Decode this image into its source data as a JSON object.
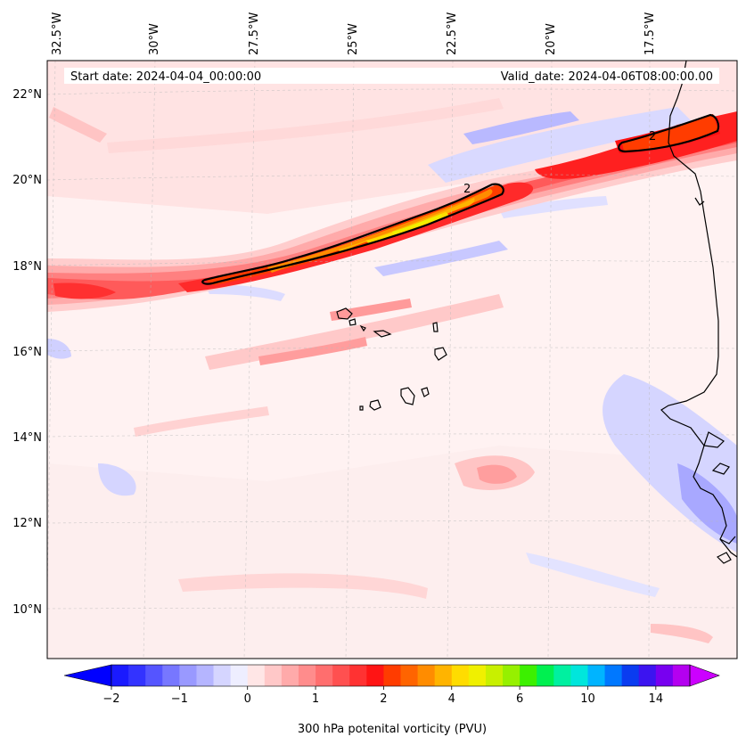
{
  "map": {
    "start_date_label": "Start date: 2024-04-04_00:00:00",
    "valid_date_label": "Valid_date: 2024-04-06T08:00:00.00",
    "contour_label": "2",
    "lon_ticks": [
      "32.5°W",
      "30°W",
      "27.5°W",
      "25°W",
      "22.5°W",
      "20°W",
      "17.5°W"
    ],
    "lat_ticks": [
      "22°N",
      "20°N",
      "18°N",
      "16°N",
      "14°N",
      "12°N",
      "10°N"
    ]
  },
  "colorbar": {
    "label": "300 hPa potenital vorticity (PVU)",
    "tick_labels": [
      "−2",
      "−1",
      "0",
      "1",
      "2",
      "4",
      "6",
      "10",
      "14"
    ],
    "tick_values": [
      -2,
      -1,
      0,
      1,
      2,
      4,
      6,
      10,
      14
    ],
    "colors": [
      "#1a1aff",
      "#3333ff",
      "#5555ff",
      "#7777ff",
      "#9999ff",
      "#b5b5ff",
      "#d5d5ff",
      "#eeeeff",
      "#ffe6e6",
      "#ffc8c8",
      "#ffaaaa",
      "#ff8c8c",
      "#ff6e6e",
      "#ff5050",
      "#ff3232",
      "#ff1414",
      "#ff3c00",
      "#ff6400",
      "#ff8c00",
      "#ffb400",
      "#ffdc00",
      "#f0f000",
      "#c8f000",
      "#96f000",
      "#3cf000",
      "#00f050",
      "#00f0a0",
      "#00e6dc",
      "#00b4ff",
      "#0078ff",
      "#0a3cf0",
      "#3c14f0",
      "#7800f0",
      "#b400f0"
    ],
    "under_color": "#0000ff",
    "over_color": "#cc00ff"
  }
}
